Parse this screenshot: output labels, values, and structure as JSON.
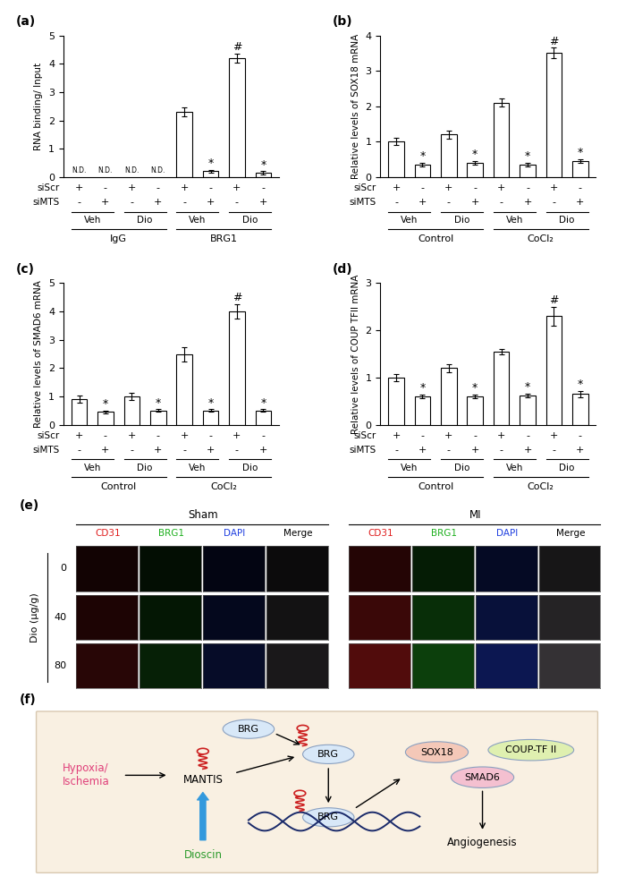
{
  "chart_data": [
    {
      "panel": "(a)",
      "type": "bar",
      "y_label": "RNA binding/ Input",
      "categories": [
        null,
        null,
        null,
        null,
        null,
        null,
        null,
        null
      ],
      "values": [
        null,
        null,
        null,
        null,
        2.3,
        0.2,
        4.2,
        0.15
      ],
      "errors": [
        null,
        null,
        null,
        null,
        0.15,
        0.05,
        0.15,
        0.05
      ],
      "marks": [
        "N.D.",
        "N.D.",
        "N.D.",
        "N.D.",
        null,
        "*",
        "#",
        "*"
      ],
      "ylim": [
        0,
        5
      ],
      "yticks": [
        0,
        1,
        2,
        3,
        4,
        5
      ],
      "color": "#ffffff",
      "condition_rows": [
        {
          "name": "siScr",
          "marks": [
            "+",
            "-",
            "+",
            "-",
            "+",
            "-",
            "+",
            "-"
          ]
        },
        {
          "name": "siMTS",
          "marks": [
            "-",
            "+",
            "-",
            "+",
            "-",
            "+",
            "-",
            "+"
          ]
        }
      ],
      "treatments": [
        "Veh",
        "Dio",
        "Veh",
        "Dio"
      ],
      "groups": [
        "IgG",
        "BRG1"
      ]
    },
    {
      "panel": "(b)",
      "type": "bar",
      "y_label": "Relative levels of SOX18 mRNA",
      "categories": [
        null,
        null,
        null,
        null,
        null,
        null,
        null,
        null
      ],
      "values": [
        1.0,
        0.35,
        1.2,
        0.4,
        2.1,
        0.35,
        3.5,
        0.45
      ],
      "errors": [
        0.1,
        0.05,
        0.12,
        0.05,
        0.12,
        0.05,
        0.15,
        0.05
      ],
      "marks": [
        null,
        "*",
        null,
        "*",
        null,
        "*",
        "#",
        "*"
      ],
      "ylim": [
        0,
        4
      ],
      "yticks": [
        0,
        1,
        2,
        3,
        4
      ],
      "color": "#ffffff",
      "condition_rows": [
        {
          "name": "siScr",
          "marks": [
            "+",
            "-",
            "+",
            "-",
            "+",
            "-",
            "+",
            "-"
          ]
        },
        {
          "name": "siMTS",
          "marks": [
            "-",
            "+",
            "-",
            "+",
            "-",
            "+",
            "-",
            "+"
          ]
        }
      ],
      "treatments": [
        "Veh",
        "Dio",
        "Veh",
        "Dio"
      ],
      "groups": [
        "Control",
        "CoCl₂"
      ]
    },
    {
      "panel": "(c)",
      "type": "bar",
      "y_label": "Relative levels of SMAD6 mRNA",
      "categories": [
        null,
        null,
        null,
        null,
        null,
        null,
        null,
        null
      ],
      "values": [
        0.9,
        0.45,
        1.0,
        0.5,
        2.5,
        0.5,
        4.0,
        0.5
      ],
      "errors": [
        0.12,
        0.05,
        0.12,
        0.05,
        0.25,
        0.05,
        0.25,
        0.05
      ],
      "marks": [
        null,
        "*",
        null,
        "*",
        null,
        "*",
        "#",
        "*"
      ],
      "ylim": [
        0,
        5
      ],
      "yticks": [
        0,
        1,
        2,
        3,
        4,
        5
      ],
      "color": "#ffffff",
      "condition_rows": [
        {
          "name": "siScr",
          "marks": [
            "+",
            "-",
            "+",
            "-",
            "+",
            "-",
            "+",
            "-"
          ]
        },
        {
          "name": "siMTS",
          "marks": [
            "-",
            "+",
            "-",
            "+",
            "-",
            "+",
            "-",
            "+"
          ]
        }
      ],
      "treatments": [
        "Veh",
        "Dio",
        "Veh",
        "Dio"
      ],
      "groups": [
        "Control",
        "CoCl₂"
      ]
    },
    {
      "panel": "(d)",
      "type": "bar",
      "y_label": "Relative levels of COUP TFII mRNA",
      "categories": [
        null,
        null,
        null,
        null,
        null,
        null,
        null,
        null
      ],
      "values": [
        1.0,
        0.6,
        1.2,
        0.6,
        1.55,
        0.62,
        2.3,
        0.65
      ],
      "errors": [
        0.08,
        0.04,
        0.08,
        0.04,
        0.06,
        0.04,
        0.2,
        0.06
      ],
      "marks": [
        null,
        "*",
        null,
        "*",
        null,
        "*",
        "#",
        "*"
      ],
      "ylim": [
        0,
        3
      ],
      "yticks": [
        0,
        1,
        2,
        3
      ],
      "color": "#ffffff",
      "condition_rows": [
        {
          "name": "siScr",
          "marks": [
            "+",
            "-",
            "+",
            "-",
            "+",
            "-",
            "+",
            "-"
          ]
        },
        {
          "name": "siMTS",
          "marks": [
            "-",
            "+",
            "-",
            "+",
            "-",
            "+",
            "-",
            "+"
          ]
        }
      ],
      "treatments": [
        "Veh",
        "Dio",
        "Veh",
        "Dio"
      ],
      "groups": [
        "Control",
        "CoCl₂"
      ]
    }
  ],
  "image_panel": {
    "panel": "(e)",
    "groups": [
      "Sham",
      "MI"
    ],
    "channels": [
      {
        "name": "CD31",
        "color": "#e02020"
      },
      {
        "name": "BRG1",
        "color": "#20b020"
      },
      {
        "name": "DAPI",
        "color": "#2040e0"
      },
      {
        "name": "Merge",
        "color": "#000000"
      }
    ],
    "row_title": "Dio (µg/g)",
    "rows": [
      0,
      40,
      80
    ]
  },
  "diagram": {
    "panel": "(f)",
    "stimulus": "Hypoxia/\nIschemia",
    "lncrna": "MANTIS",
    "drug": "Dioscin",
    "protein": "BRG",
    "targets": [
      "SOX18",
      "COUP-TF II",
      "SMAD6"
    ],
    "outcome": "Angiogenesis"
  }
}
